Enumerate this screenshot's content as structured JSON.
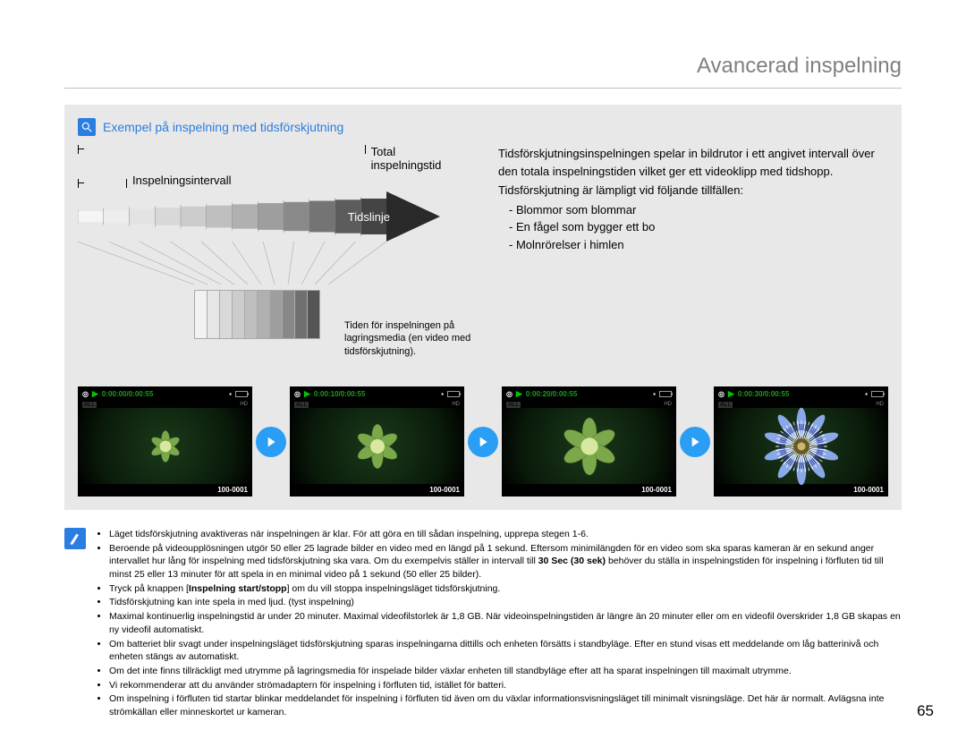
{
  "page": {
    "title": "Avancerad inspelning",
    "number": "65"
  },
  "section": {
    "title": "Exempel på inspelning med tidsförskjutning"
  },
  "diagram": {
    "total_label": "Total inspelningstid",
    "interval_label": "Inspelningsintervall",
    "timeline_label": "Tidslinje",
    "note": "Tiden för inspelningen på lagringsmedia (en video med tidsförskjutning).",
    "gradient_shades": [
      "#f5f5f5",
      "#ededed",
      "#e3e3e3",
      "#d8d8d8",
      "#cccccc",
      "#bfbfbf",
      "#b0b0b0",
      "#9e9e9e",
      "#8a8a8a",
      "#747474",
      "#5c5c5c",
      "#444444"
    ],
    "small_shades": [
      "#f2f2f2",
      "#e6e6e6",
      "#d9d9d9",
      "#cccccc",
      "#bfbfbf",
      "#b0b0b0",
      "#9e9e9e",
      "#888888",
      "#707070",
      "#555555"
    ]
  },
  "desc": {
    "p1": "Tidsförskjutningsinspelningen spelar in bildrutor i ett angivet intervall över den totala inspelningstiden vilket ger ett videoklipp med tidshopp.",
    "p2": "Tidsförskjutning är lämpligt vid följande tillfällen:",
    "items": [
      "Blommor som blommar",
      "En fågel som bygger ett bo",
      "Molnrörelser i himlen"
    ]
  },
  "thumbs": [
    {
      "time": "0:00:00/0:00:55",
      "file": "100-0001",
      "stage": 0
    },
    {
      "time": "0:00:10/0:00:55",
      "file": "100-0001",
      "stage": 1
    },
    {
      "time": "0:00:20/0:00:55",
      "file": "100-0001",
      "stage": 2
    },
    {
      "time": "0:00:30/0:00:55",
      "file": "100-0001",
      "stage": 3
    }
  ],
  "notes": [
    "Läget tidsförskjutning avaktiveras när inspelningen är klar. För att göra en till sådan inspelning, upprepa stegen 1-6.",
    "Beroende på videoupplösningen utgör 50 eller 25 lagrade bilder en video med en längd på 1 sekund. Eftersom minimilängden för en video som ska sparas kameran är en sekund anger intervallet hur lång för inspelning med tidsförskjutning ska vara. Om du exempelvis ställer in intervall till 30 Sec (30 sek) behöver du ställa in inspelningstiden för inspelning i förfluten tid till minst 25 eller 13 minuter för att spela in en minimal video på 1 sekund (50 eller 25 bilder).",
    "Tryck på knappen [Inspelning start/stopp] om du vill stoppa inspelningsläget tidsförskjutning.",
    "Tidsförskjutning kan inte spela in med ljud. (tyst inspelning)",
    "Maximal kontinuerlig inspelningstid är under 20 minuter. Maximal videofilstorlek är 1,8 GB. När videoinspelningstiden är längre än 20 minuter eller om en videofil överskrider 1,8 GB skapas en ny videofil automatiskt.",
    "Om batteriet blir svagt under inspelningsläget tidsförskjutning sparas inspelningarna dittills och enheten försätts i standbyläge. Efter en stund visas ett meddelande om låg batterinivå och enheten stängs av automatiskt.",
    "Om det inte finns tillräckligt med utrymme på lagringsmedia för inspelade bilder växlar enheten till standbyläge efter att ha sparat inspelningen till maximalt utrymme.",
    "Vi rekommenderar att du använder strömadaptern för inspelning i förfluten tid, istället för batteri.",
    "Om inspelning i förfluten tid startar blinkar meddelandet för inspelning i förfluten tid även om du växlar informationsvisningsläget till minimalt visningsläge. Det här är normalt. Avlägsna inte strömkällan eller minneskortet ur kameran."
  ]
}
